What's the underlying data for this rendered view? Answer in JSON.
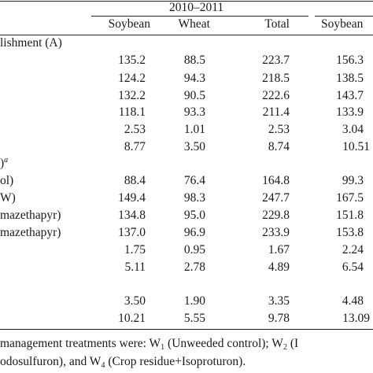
{
  "header": {
    "period": "2010–2011",
    "columns": [
      "Soybean",
      "Wheat",
      "Total",
      "Soybean"
    ]
  },
  "sections": [
    {
      "title": "lishment (A)",
      "title_sup": "",
      "rows": [
        {
          "label": "",
          "values": [
            "135.2",
            "88.5",
            "223.7",
            "156.3"
          ]
        },
        {
          "label": "",
          "values": [
            "124.2",
            "94.3",
            "218.5",
            "138.5"
          ]
        },
        {
          "label": "",
          "values": [
            "132.2",
            "90.5",
            "222.6",
            "143.7"
          ]
        },
        {
          "label": "",
          "values": [
            "118.1",
            "93.3",
            "211.4",
            "133.9"
          ]
        },
        {
          "label": "",
          "values": [
            "2.53",
            "1.01",
            "2.53",
            "3.04"
          ]
        },
        {
          "label": "",
          "values": [
            "8.77",
            "3.50",
            "8.74",
            "10.51"
          ]
        }
      ]
    },
    {
      "title": ")",
      "title_sup": "a",
      "rows": [
        {
          "label": "ol)",
          "values": [
            "88.4",
            "76.4",
            "164.8",
            "99.3"
          ]
        },
        {
          "label": "W)",
          "values": [
            "149.4",
            "98.3",
            "247.7",
            "167.5"
          ]
        },
        {
          "label": "mazethapyr)",
          "values": [
            "134.8",
            "95.0",
            "229.8",
            "151.8"
          ]
        },
        {
          "label": "mazethapyr)",
          "values": [
            "137.0",
            "96.9",
            "233.9",
            "153.8"
          ]
        },
        {
          "label": "",
          "values": [
            "1.75",
            "0.95",
            "1.67",
            "2.24"
          ]
        },
        {
          "label": "",
          "values": [
            "5.11",
            "2.78",
            "4.89",
            "6.54"
          ]
        }
      ]
    },
    {
      "title": "",
      "title_sup": "",
      "rows": [
        {
          "label": "",
          "values": [
            "3.50",
            "1.90",
            "3.35",
            "4.48"
          ]
        },
        {
          "label": "",
          "values": [
            "10.21",
            "5.55",
            "9.78",
            "13.09"
          ]
        }
      ]
    }
  ],
  "footnote": {
    "line1_pre": "management treatments were: W",
    "line1_s1": "1",
    "line1_mid": " (Unweeded control); W",
    "line1_s2": "2",
    "line1_post": " (I",
    "line2_pre": "odosulfuron), and W",
    "line2_s4": "4",
    "line2_post": " (Crop residue+Isoproturon)."
  }
}
